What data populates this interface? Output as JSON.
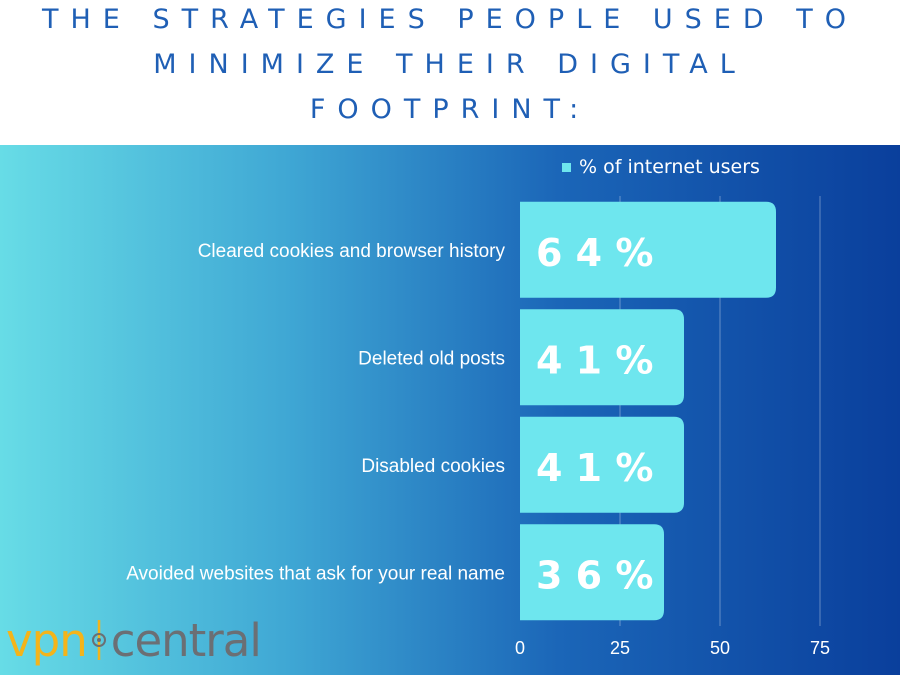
{
  "title_lines": [
    "THE STRATEGIES PEOPLE USED TO",
    "MINIMIZE THEIR DIGITAL",
    "FOOTPRINT:"
  ],
  "logo": {
    "part1": "vpn",
    "part2": "central",
    "colors": {
      "vpn": "#f4b41a",
      "central": "#6b6f74"
    }
  },
  "chart_data": {
    "type": "bar",
    "orientation": "horizontal",
    "title": "THE STRATEGIES PEOPLE USED TO MINIMIZE THEIR DIGITAL FOOTPRINT:",
    "categories": [
      "Cleared cookies and browser history",
      "Deleted old posts",
      "Disabled cookies",
      "Avoided websites that ask for your real name"
    ],
    "series": [
      {
        "name": "% of internet users",
        "values": [
          64,
          41,
          41,
          36
        ],
        "color": "#6ee6ee"
      }
    ],
    "data_labels": [
      "6 4 %",
      "4 1 %",
      "4 1 %",
      "3 6 %"
    ],
    "xlim": [
      0,
      75
    ],
    "x_ticks": [
      0,
      25,
      50,
      75
    ],
    "grid": true,
    "legend_position": "top"
  }
}
